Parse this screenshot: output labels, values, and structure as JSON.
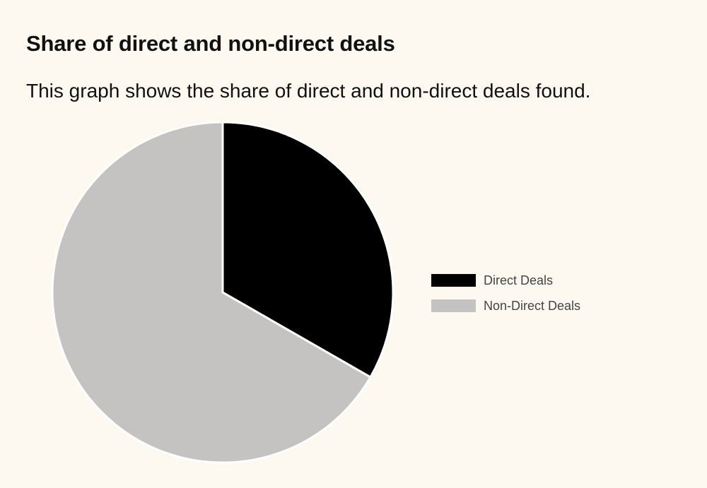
{
  "header": {
    "title": "Share of direct and non-direct deals",
    "subtitle": "This graph shows the share of direct and non-direct deals found."
  },
  "chart_data": {
    "type": "pie",
    "title": "Share of direct and non-direct deals",
    "subtitle": "This graph shows the share of direct and non-direct deals found.",
    "categories": [
      "Direct Deals",
      "Non-Direct Deals"
    ],
    "values": [
      33.3,
      66.7
    ],
    "colors": [
      "#000000",
      "#c4c3c2"
    ],
    "start": "12 o'clock",
    "direction": "clockwise",
    "legend": {
      "position": "right",
      "entries": [
        "Direct Deals",
        "Non-Direct Deals"
      ]
    }
  },
  "colors": {
    "background": "#fdf9f0",
    "title_text": "#111111",
    "legend_text": "#444444",
    "slice_border": "#ffffff"
  }
}
